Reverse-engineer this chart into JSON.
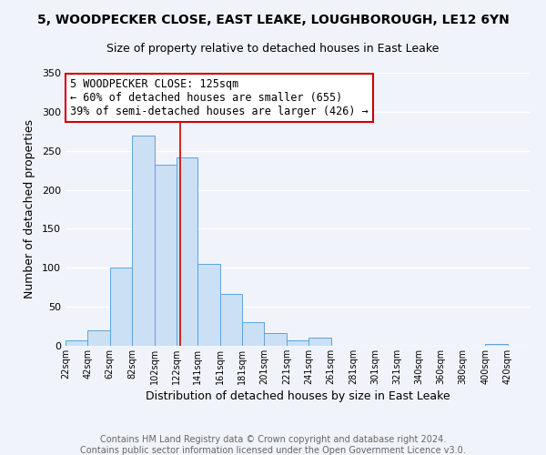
{
  "title": "5, WOODPECKER CLOSE, EAST LEAKE, LOUGHBOROUGH, LE12 6YN",
  "subtitle": "Size of property relative to detached houses in East Leake",
  "xlabel": "Distribution of detached houses by size in East Leake",
  "ylabel": "Number of detached properties",
  "bar_left_edges": [
    22,
    42,
    62,
    82,
    102,
    122,
    141,
    161,
    181,
    201,
    221,
    241,
    261,
    281,
    301,
    321,
    340,
    360,
    380,
    400
  ],
  "bar_widths": [
    20,
    20,
    20,
    20,
    20,
    19,
    20,
    20,
    20,
    20,
    20,
    20,
    20,
    20,
    20,
    19,
    20,
    20,
    20,
    20
  ],
  "bar_heights": [
    7,
    20,
    100,
    270,
    232,
    242,
    105,
    67,
    30,
    16,
    7,
    10,
    0,
    0,
    0,
    0,
    0,
    0,
    0,
    2
  ],
  "bar_color": "#cce0f5",
  "bar_edge_color": "#5ba3d9",
  "property_line_x": 125,
  "property_line_color": "#cc0000",
  "annotation_text": "5 WOODPECKER CLOSE: 125sqm\n← 60% of detached houses are smaller (655)\n39% of semi-detached houses are larger (426) →",
  "annotation_box_color": "#ffffff",
  "annotation_box_edge_color": "#cc0000",
  "xlim": [
    22,
    440
  ],
  "ylim": [
    0,
    350
  ],
  "tick_labels": [
    "22sqm",
    "42sqm",
    "62sqm",
    "82sqm",
    "102sqm",
    "122sqm",
    "141sqm",
    "161sqm",
    "181sqm",
    "201sqm",
    "221sqm",
    "241sqm",
    "261sqm",
    "281sqm",
    "301sqm",
    "321sqm",
    "340sqm",
    "360sqm",
    "380sqm",
    "400sqm",
    "420sqm"
  ],
  "tick_positions": [
    22,
    42,
    62,
    82,
    102,
    122,
    141,
    161,
    181,
    201,
    221,
    241,
    261,
    281,
    301,
    321,
    340,
    360,
    380,
    400,
    420
  ],
  "footer_line1": "Contains HM Land Registry data © Crown copyright and database right 2024.",
  "footer_line2": "Contains public sector information licensed under the Open Government Licence v3.0.",
  "background_color": "#f0f4fa",
  "plot_bg_color": "#f0f4fa",
  "grid_color": "#ffffff",
  "title_fontsize": 10,
  "subtitle_fontsize": 9,
  "axis_label_fontsize": 9,
  "annotation_fontsize": 8.5,
  "tick_fontsize": 7,
  "footer_fontsize": 7
}
